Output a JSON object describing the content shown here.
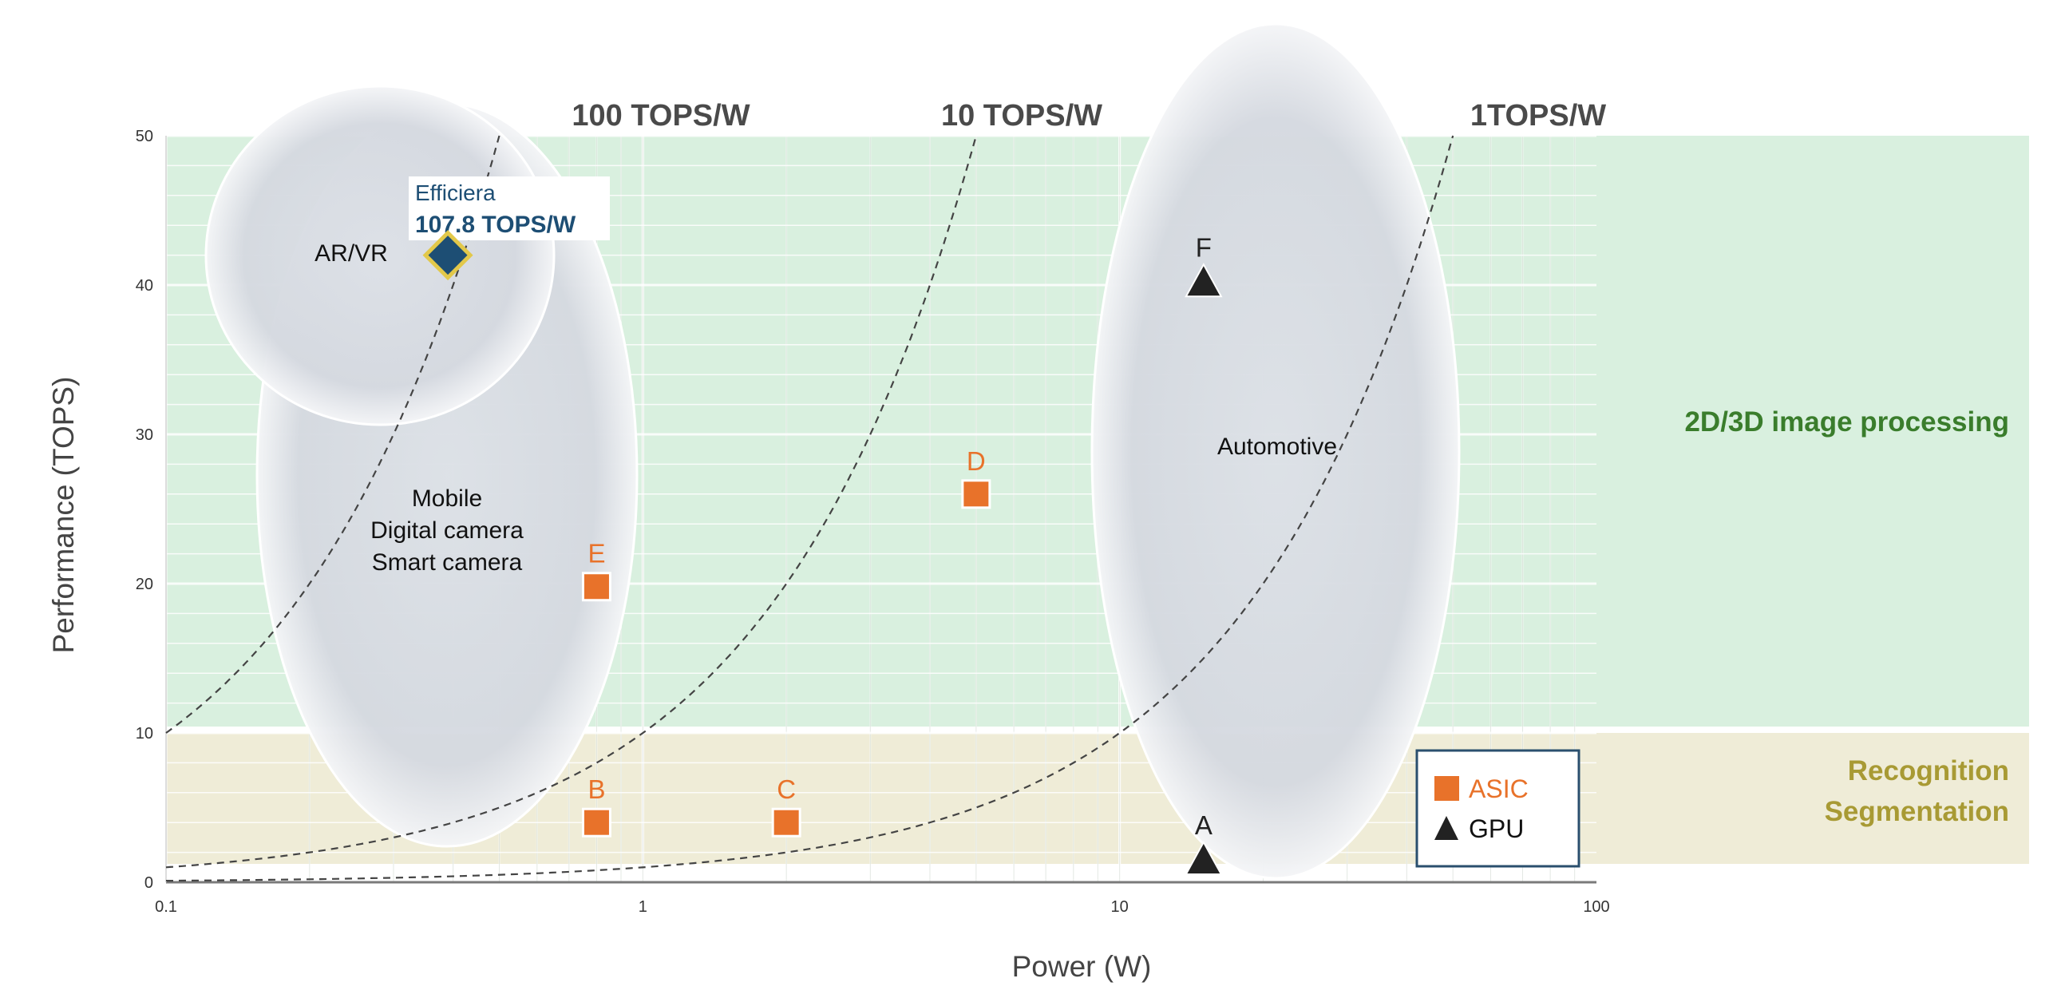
{
  "chart_data": {
    "type": "scatter",
    "xlabel": "Power (W)",
    "ylabel": "Performance (TOPS)",
    "x_scale": "log",
    "xlim": [
      0.1,
      100
    ],
    "ylim": [
      0,
      50
    ],
    "x_ticks": [
      "0.1",
      "1",
      "10",
      "100"
    ],
    "y_ticks": [
      "0",
      "10",
      "20",
      "30",
      "40",
      "50"
    ],
    "grid": true,
    "bands": [
      {
        "label_lines": [
          "2D/3D image processing"
        ],
        "y_range": [
          10,
          50
        ],
        "color": "#d9f0df",
        "label_color": "#3a7d2c"
      },
      {
        "label_lines": [
          "Recognition",
          "Segmentation"
        ],
        "y_range": [
          1,
          10
        ],
        "color": "#efecd7",
        "label_color": "#a89a34"
      }
    ],
    "efficiency_curves": [
      {
        "label": "100 TOPS/W",
        "tops_per_watt": 100
      },
      {
        "label": "10 TOPS/W",
        "tops_per_watt": 10
      },
      {
        "label": "1TOPS/W",
        "tops_per_watt": 1
      }
    ],
    "regions": [
      {
        "label_lines": [
          "Mobile",
          "Digital camera",
          "Smart camera"
        ]
      },
      {
        "label_lines": [
          "AR/VR"
        ]
      },
      {
        "label_lines": [
          "Automotive"
        ]
      }
    ],
    "series": [
      {
        "name": "ASIC",
        "marker": "square",
        "color": "#e8722a",
        "points": [
          {
            "label": "B",
            "x": 0.8,
            "y": 4
          },
          {
            "label": "C",
            "x": 2,
            "y": 4
          },
          {
            "label": "D",
            "x": 5,
            "y": 26
          },
          {
            "label": "E",
            "x": 0.8,
            "y": 19.8
          }
        ]
      },
      {
        "name": "GPU",
        "marker": "triangle",
        "color": "#222222",
        "points": [
          {
            "label": "A",
            "x": 15,
            "y": 1.5
          },
          {
            "label": "F",
            "x": 15,
            "y": 40.2
          }
        ]
      }
    ],
    "highlight": {
      "name": "Efficiera",
      "value_label": "107.8 TOPS/W",
      "x": 0.39,
      "y": 42,
      "color": "#1d4e74",
      "border": "#e2c84a"
    }
  }
}
